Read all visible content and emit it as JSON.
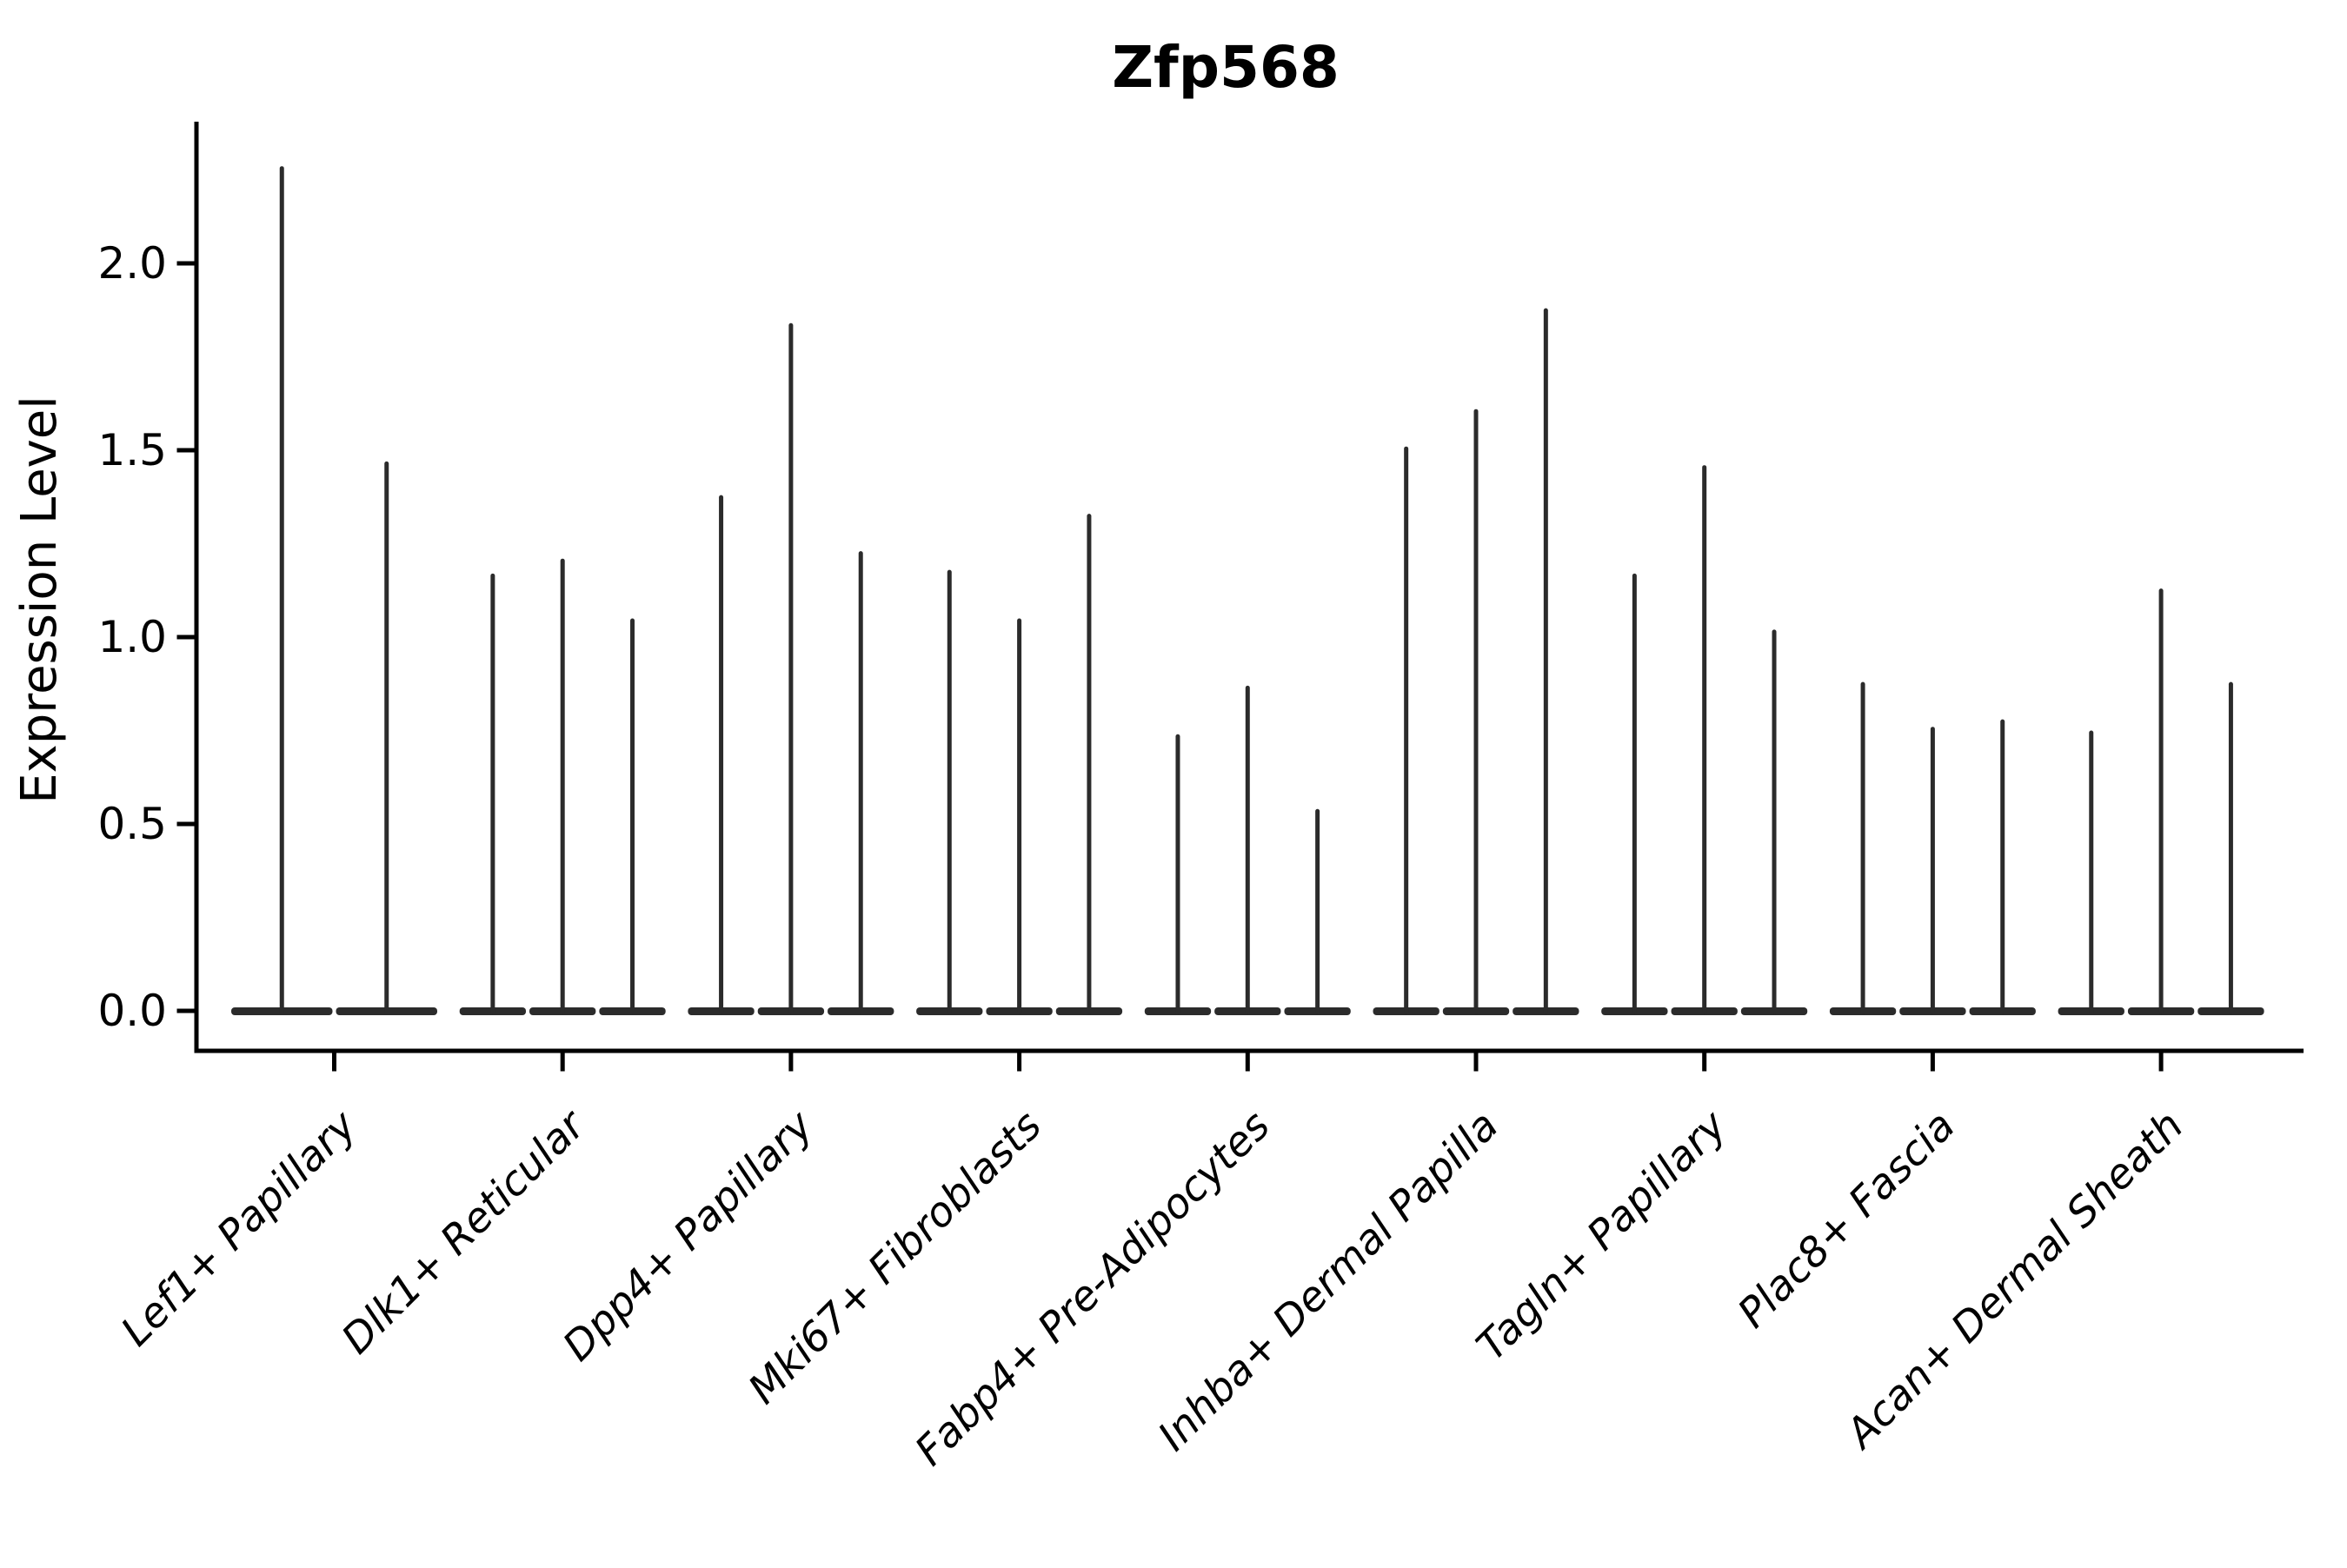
{
  "title": "Zfp568",
  "ylabel": "Expression Level",
  "colors": {
    "background": "#ffffff",
    "violin": "#2b2b2b",
    "axis": "#000000",
    "text": "#000000"
  },
  "chart_data": {
    "type": "violin",
    "title": "Zfp568",
    "xlabel": "",
    "ylabel": "Expression Level",
    "ylim": [
      -0.11,
      2.37
    ],
    "grid": false,
    "legend": false,
    "yticks": {
      "values": [
        0.0,
        0.5,
        1.0,
        1.5,
        2.0
      ],
      "labels": [
        "0.0",
        "0.5",
        "1.0",
        "1.5",
        "2.0"
      ]
    },
    "violin_base_value": 0.0,
    "groups": [
      {
        "label": "Lef1+ Papillary",
        "violin_maxima": [
          2.26,
          1.47
        ]
      },
      {
        "label": "Dlk1+ Reticular",
        "violin_maxima": [
          1.17,
          1.21,
          1.05
        ]
      },
      {
        "label": "Dpp4+ Papillary",
        "violin_maxima": [
          1.38,
          1.84,
          1.23
        ]
      },
      {
        "label": "Mki67+ Fibroblasts",
        "violin_maxima": [
          1.18,
          1.05,
          1.33
        ]
      },
      {
        "label": "Fabp4+ Pre-Adipocytes",
        "violin_maxima": [
          0.74,
          0.87,
          0.54
        ]
      },
      {
        "label": "Inhba+ Dermal Papilla",
        "violin_maxima": [
          1.51,
          1.61,
          1.88
        ]
      },
      {
        "label": "Tagln+ Papillary",
        "violin_maxima": [
          1.17,
          1.46,
          1.02
        ]
      },
      {
        "label": "Plac8+ Fascia",
        "violin_maxima": [
          0.88,
          0.76,
          0.78
        ]
      },
      {
        "label": "Acan+ Dermal Sheath",
        "violin_maxima": [
          0.75,
          1.13,
          0.88
        ]
      }
    ]
  }
}
